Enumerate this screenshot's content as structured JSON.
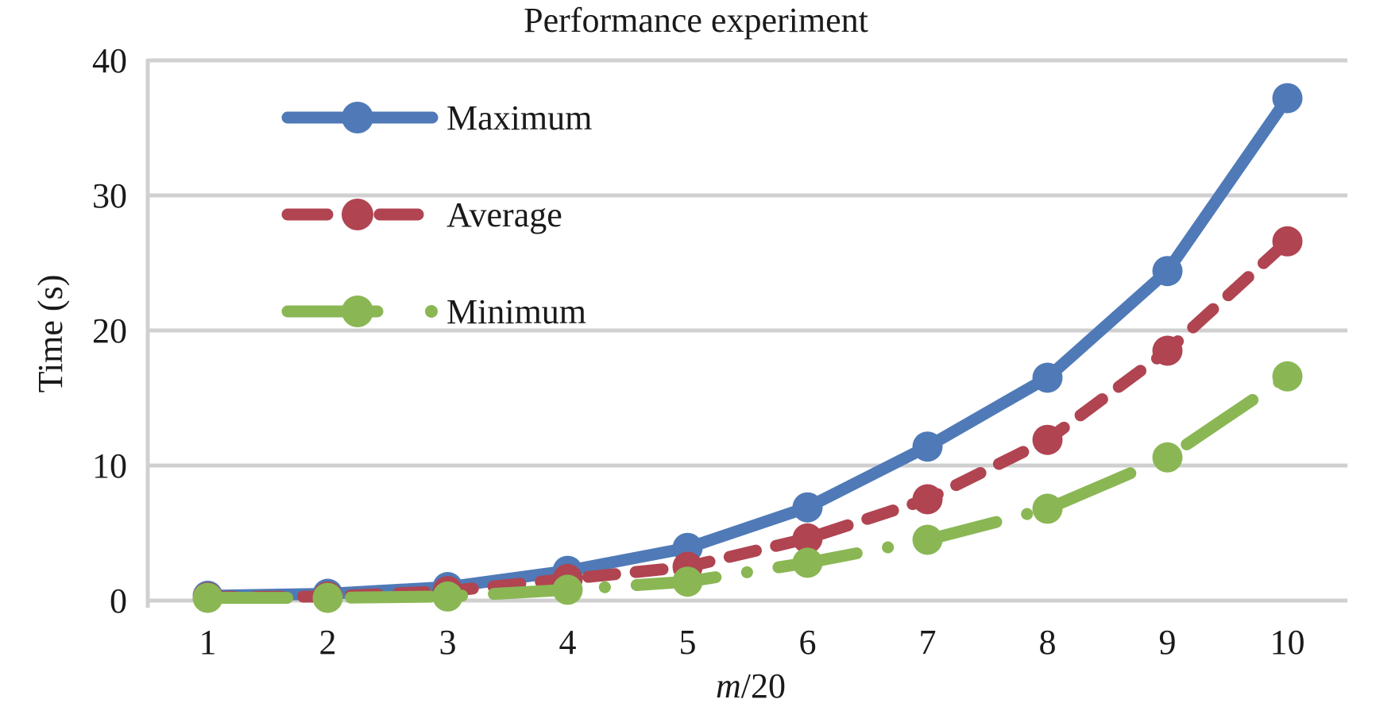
{
  "chart_data": {
    "type": "line",
    "title": "Performance experiment",
    "xlabel_italic": "m",
    "xlabel_rest": "/20",
    "xlabel": "m/20",
    "ylabel": "Time (s)",
    "categories": [
      "1",
      "2",
      "3",
      "4",
      "5",
      "6",
      "7",
      "8",
      "9",
      "10"
    ],
    "ylim": [
      0,
      40
    ],
    "yticks": [
      0,
      10,
      20,
      30,
      40
    ],
    "grid": true,
    "legend_position": "top-left",
    "series": [
      {
        "name": "Maximum",
        "style": "solid",
        "color": "#4F7AB7",
        "values": [
          0.35,
          0.5,
          1.0,
          2.2,
          3.9,
          6.9,
          11.4,
          16.5,
          24.4,
          37.2
        ]
      },
      {
        "name": "Average",
        "style": "dashed",
        "color": "#B04451",
        "values": [
          0.25,
          0.3,
          0.7,
          1.6,
          2.5,
          4.6,
          7.5,
          11.9,
          18.5,
          26.6
        ]
      },
      {
        "name": "Minimum",
        "style": "dash-dot",
        "color": "#8AB754",
        "values": [
          0.2,
          0.2,
          0.3,
          0.8,
          1.4,
          2.8,
          4.5,
          6.8,
          10.6,
          16.6
        ]
      }
    ]
  }
}
